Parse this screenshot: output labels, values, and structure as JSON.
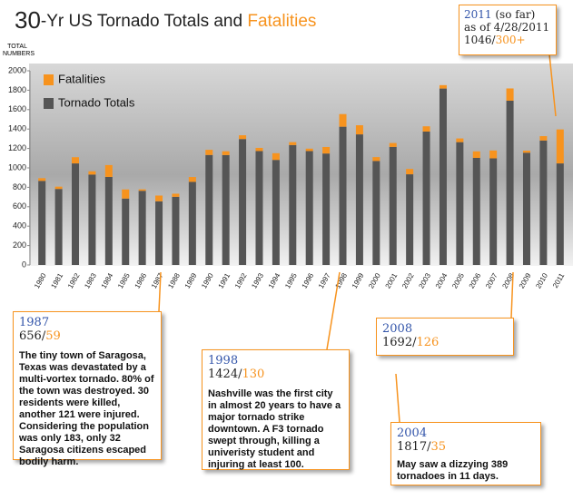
{
  "chart_data": {
    "type": "stacked-bar",
    "title": [
      "30",
      "-Yr US Tornado Totals and ",
      "Fatalities"
    ],
    "ylabel": [
      "TOTAL",
      "NUMBERS"
    ],
    "categories": [
      "1980",
      "1981",
      "1982",
      "1983",
      "1984",
      "1985",
      "1986",
      "1987",
      "1988",
      "1989",
      "1990",
      "1991",
      "1992",
      "1993",
      "1994",
      "1995",
      "1996",
      "1997",
      "1998",
      "1999",
      "2000",
      "2001",
      "2002",
      "2003",
      "2004",
      "2005",
      "2006",
      "2007",
      "2008",
      "2009",
      "2010",
      "2011"
    ],
    "series": [
      {
        "name": "Tornado Totals",
        "color": "#555555",
        "values": [
          866,
          783,
          1046,
          931,
          907,
          684,
          764,
          656,
          702,
          856,
          1133,
          1132,
          1297,
          1173,
          1082,
          1235,
          1173,
          1148,
          1424,
          1345,
          1071,
          1216,
          934,
          1374,
          1817,
          1265,
          1103,
          1098,
          1692,
          1156,
          1282,
          1046
        ]
      },
      {
        "name": "Fatalities",
        "color": "#f7931e",
        "values": [
          28,
          24,
          64,
          34,
          122,
          94,
          15,
          59,
          32,
          50,
          53,
          39,
          39,
          33,
          69,
          30,
          25,
          67,
          130,
          94,
          40,
          40,
          55,
          54,
          35,
          38,
          67,
          81,
          126,
          21,
          45,
          350
        ]
      }
    ],
    "ylim": [
      0,
      2000
    ],
    "yticks": [
      0,
      200,
      400,
      600,
      800,
      1000,
      1200,
      1400,
      1600,
      1800,
      2000
    ],
    "legend": "top-left",
    "annotations": [
      {
        "text": "The tiny town of Saragosa, Texas was devastated by a multi-vortex tornado. 80% of the town was destroyed. 30 residents were killed, another 121 were injured. Considering the population was only 183, only 32 Saragosa citizens escaped bodily harm."
      },
      {
        "text": "Nashville was the first city in almost 20 years to have a major tornado strike downtown. A F3 tornado swept through, killing a univeristy student and injuring at least 100."
      },
      {
        "text": "May saw a dizzying 389 tornadoes in 11 days."
      },
      {
        "note": "(so far)",
        "date": "as of 4/28/2011",
        "fatalities_label": "300+"
      }
    ]
  }
}
